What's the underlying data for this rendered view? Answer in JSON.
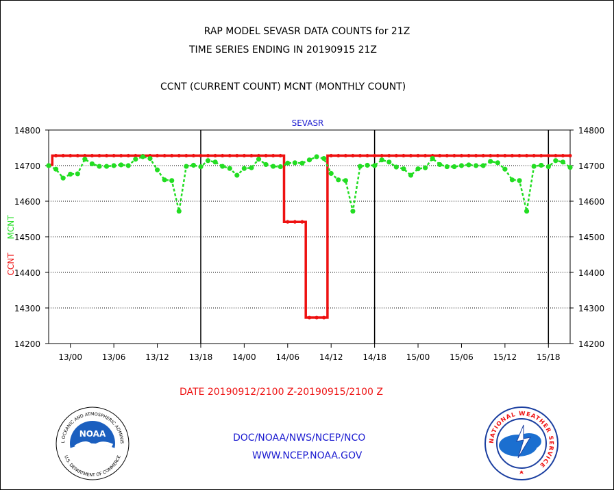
{
  "header": {
    "title_line1": "RAP MODEL SEVASR DATA COUNTS for 21Z",
    "title_line2": "TIME SERIES ENDING IN 20190915 21Z",
    "title_line3": "CCNT (CURRENT COUNT) MCNT (MONTHLY COUNT)"
  },
  "footer": {
    "date_range": "DATE 20190912/2100 Z-20190915/2100 Z",
    "agency_path": "DOC/NOAA/NWS/NCEP/NCO",
    "website": "WWW.NCEP.NOAA.GOV"
  },
  "logos": {
    "noaa_text": "NOAA",
    "noaa_ring_top": "NATIONAL OCEANIC AND ATMOSPHERIC ADMINISTRATION",
    "noaa_ring_bottom": "U.S. DEPARTMENT OF COMMERCE",
    "nws_ring": "NATIONAL WEATHER SERVICE"
  },
  "colors": {
    "ccnt": "#ee1111",
    "mcnt": "#22dd22",
    "title_blue": "#1a1ad0",
    "date_red": "#ee1111"
  },
  "chart_data": {
    "type": "line",
    "title": "SEVASR",
    "ylabel_ccnt": "CCNT",
    "ylabel_mcnt": "MCNT",
    "ylim": [
      14200,
      14800
    ],
    "yticks": [
      "14200",
      "14300",
      "14400",
      "14500",
      "14600",
      "14700",
      "14800"
    ],
    "x_hours_range": [
      0,
      72
    ],
    "x_ticks": [
      {
        "label": "13/00",
        "hour": 3
      },
      {
        "label": "13/06",
        "hour": 9
      },
      {
        "label": "13/12",
        "hour": 15
      },
      {
        "label": "13/18",
        "hour": 21
      },
      {
        "label": "14/00",
        "hour": 27
      },
      {
        "label": "14/06",
        "hour": 33
      },
      {
        "label": "14/12",
        "hour": 39
      },
      {
        "label": "14/18",
        "hour": 45
      },
      {
        "label": "15/00",
        "hour": 51
      },
      {
        "label": "15/06",
        "hour": 57
      },
      {
        "label": "15/12",
        "hour": 63
      },
      {
        "label": "15/18",
        "hour": 69
      }
    ],
    "day_boundaries_hours": [
      21,
      45,
      69
    ],
    "grid": true,
    "series": [
      {
        "name": "CCNT",
        "color": "#ee1111",
        "hours": [
          0,
          1,
          2,
          3,
          4,
          5,
          6,
          7,
          8,
          9,
          10,
          11,
          12,
          13,
          14,
          15,
          16,
          17,
          18,
          19,
          20,
          21,
          22,
          23,
          24,
          25,
          26,
          27,
          28,
          29,
          30,
          31,
          32,
          33,
          34,
          35,
          36,
          37,
          38,
          39,
          40,
          41,
          42,
          43,
          44,
          45,
          46,
          47,
          48,
          49,
          50,
          51,
          52,
          53,
          54,
          55,
          56,
          57,
          58,
          59,
          60,
          61,
          62,
          63,
          64,
          65,
          66,
          67,
          68,
          69,
          70,
          71,
          72
        ],
        "values": [
          14702,
          14728,
          14728,
          14728,
          14728,
          14728,
          14728,
          14728,
          14728,
          14728,
          14728,
          14728,
          14728,
          14728,
          14728,
          14728,
          14728,
          14728,
          14728,
          14728,
          14728,
          14728,
          14728,
          14728,
          14728,
          14728,
          14728,
          14728,
          14728,
          14728,
          14728,
          14728,
          14728,
          14542,
          14542,
          14542,
          14273,
          14273,
          14273,
          14728,
          14728,
          14728,
          14728,
          14728,
          14728,
          14728,
          14728,
          14728,
          14728,
          14728,
          14728,
          14728,
          14728,
          14728,
          14728,
          14728,
          14728,
          14728,
          14728,
          14728,
          14728,
          14728,
          14728,
          14728,
          14728,
          14728,
          14728,
          14728,
          14728,
          14728,
          14728,
          14728,
          14728
        ]
      },
      {
        "name": "MCNT",
        "color": "#22dd22",
        "hours": [
          0,
          1,
          2,
          3,
          4,
          5,
          6,
          7,
          8,
          9,
          10,
          11,
          12,
          13,
          14,
          15,
          16,
          17,
          18,
          19,
          20,
          21,
          22,
          23,
          24,
          25,
          26,
          27,
          28,
          29,
          30,
          31,
          32,
          33,
          34,
          35,
          36,
          37,
          38,
          39,
          40,
          41,
          42,
          43,
          44,
          45,
          46,
          47,
          48,
          49,
          50,
          51,
          52,
          53,
          54,
          55,
          56,
          57,
          58,
          59,
          60,
          61,
          62,
          63,
          64,
          65,
          66,
          67,
          68,
          69,
          70,
          71,
          72
        ],
        "values": [
          14700,
          14690,
          14665,
          14676,
          14677,
          14718,
          14705,
          14698,
          14698,
          14700,
          14702,
          14700,
          14718,
          14725,
          14720,
          14688,
          14660,
          14658,
          14572,
          14698,
          14701,
          14697,
          14714,
          14710,
          14698,
          14692,
          14673,
          14692,
          14694,
          14718,
          14703,
          14698,
          14697,
          14707,
          14708,
          14707,
          14716,
          14725,
          14720,
          14678,
          14660,
          14658,
          14572,
          14698,
          14701,
          14700,
          14716,
          14710,
          14696,
          14691,
          14673,
          14691,
          14694,
          14720,
          14703,
          14697,
          14697,
          14700,
          14702,
          14700,
          14700,
          14712,
          14708,
          14690,
          14660,
          14658,
          14572,
          14698,
          14701,
          14697,
          14714,
          14710,
          14695
        ]
      }
    ]
  }
}
